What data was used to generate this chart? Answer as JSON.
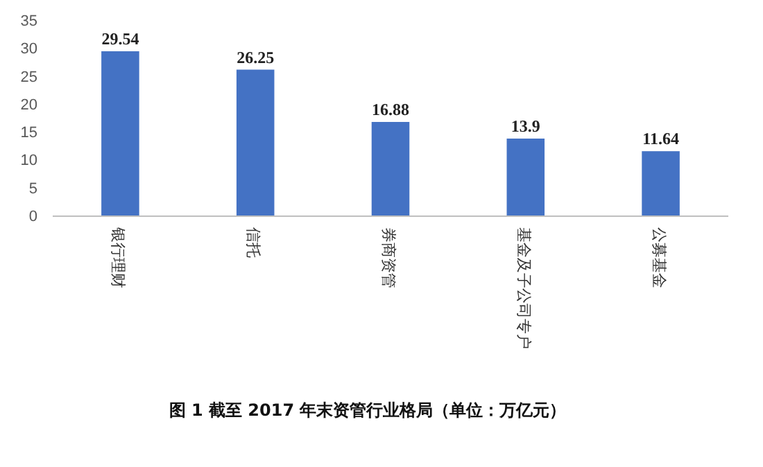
{
  "chart_data": {
    "type": "bar",
    "title": "图 1 截至 2017 年末资管行业格局（单位：万亿元）",
    "categories": [
      "银行理财",
      "信托",
      "券商资管",
      "基金及子公司专户",
      "公募基金"
    ],
    "values": [
      29.54,
      26.25,
      16.88,
      13.9,
      11.64
    ],
    "color": "#4472c4",
    "ylim": [
      0,
      35
    ],
    "yticks": [
      0,
      5,
      10,
      15,
      20,
      25,
      30,
      35
    ],
    "grid": false,
    "data_labels": true
  }
}
